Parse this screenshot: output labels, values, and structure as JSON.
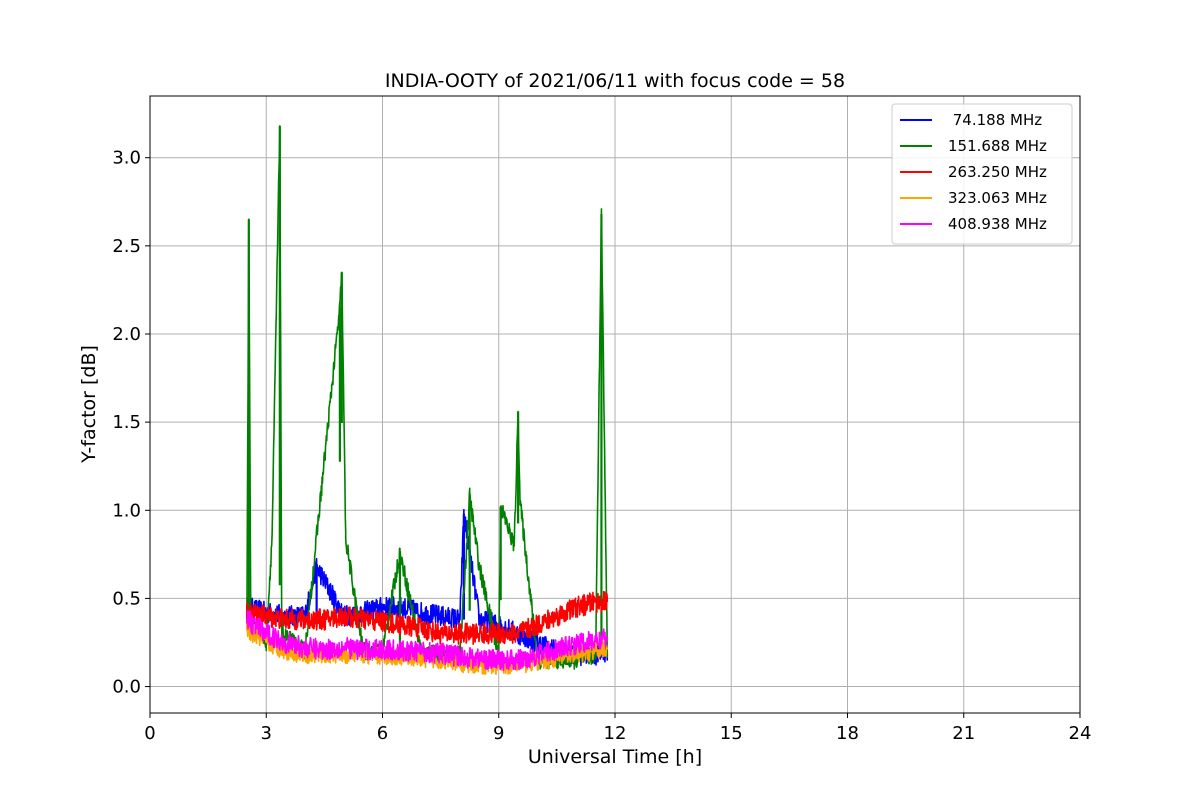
{
  "chart_data": {
    "type": "line",
    "title": "INDIA-OOTY of 2021/06/11 with focus code = 58",
    "xlabel": "Universal Time [h]",
    "ylabel": "Y-factor [dB]",
    "xlim": [
      0,
      24
    ],
    "ylim": [
      -0.15,
      3.35
    ],
    "xticks": [
      0,
      3,
      6,
      9,
      12,
      15,
      18,
      21,
      24
    ],
    "xtick_labels": [
      "0",
      "3",
      "6",
      "9",
      "12",
      "15",
      "18",
      "21",
      "24"
    ],
    "yticks": [
      0.0,
      0.5,
      1.0,
      1.5,
      2.0,
      2.5,
      3.0
    ],
    "ytick_labels": [
      "0.0",
      "0.5",
      "1.0",
      "1.5",
      "2.0",
      "2.5",
      "3.0"
    ],
    "grid": true,
    "legend_position": "top-right",
    "series": [
      {
        "name": " 74.188 MHz",
        "color": "#0000ff",
        "x": [
          2.5,
          3.0,
          3.5,
          4.0,
          4.3,
          5.0,
          5.5,
          6.0,
          6.5,
          7.0,
          7.5,
          8.0,
          8.1,
          8.5,
          9.0,
          9.5,
          10.0,
          10.5,
          11.0,
          11.5,
          11.8
        ],
        "y": [
          0.45,
          0.42,
          0.4,
          0.4,
          0.68,
          0.4,
          0.42,
          0.45,
          0.45,
          0.42,
          0.4,
          0.38,
          0.98,
          0.38,
          0.35,
          0.3,
          0.25,
          0.2,
          0.18,
          0.18,
          0.2
        ],
        "band": 0.12
      },
      {
        "name": "151.688 MHz",
        "color": "#008000",
        "x": [
          2.5,
          2.55,
          2.6,
          3.0,
          3.15,
          3.35,
          3.4,
          4.0,
          4.9,
          4.95,
          5.05,
          5.5,
          6.0,
          6.45,
          7.0,
          7.5,
          8.0,
          8.25,
          8.5,
          9.0,
          9.05,
          9.4,
          9.5,
          9.55,
          10.0,
          10.5,
          11.0,
          11.5,
          11.65,
          11.8
        ],
        "y": [
          0.35,
          2.65,
          0.4,
          0.25,
          0.85,
          3.18,
          0.3,
          0.2,
          2.15,
          2.35,
          0.84,
          0.2,
          0.2,
          0.76,
          0.2,
          0.18,
          0.18,
          1.08,
          0.68,
          0.18,
          1.02,
          0.8,
          1.56,
          1.05,
          0.15,
          0.15,
          0.15,
          0.18,
          2.68,
          0.2
        ],
        "band": 0.1
      },
      {
        "name": "263.250 MHz",
        "color": "#ff0000",
        "x": [
          2.5,
          3.0,
          3.5,
          4.0,
          4.5,
          5.0,
          5.5,
          6.0,
          6.5,
          7.0,
          7.5,
          8.0,
          8.5,
          9.0,
          9.5,
          10.0,
          10.5,
          11.0,
          11.5,
          11.8
        ],
        "y": [
          0.42,
          0.4,
          0.38,
          0.38,
          0.38,
          0.4,
          0.38,
          0.37,
          0.35,
          0.33,
          0.3,
          0.3,
          0.3,
          0.3,
          0.3,
          0.35,
          0.4,
          0.45,
          0.48,
          0.48
        ],
        "band": 0.12
      },
      {
        "name": "323.063 MHz",
        "color": "#ffa500",
        "x": [
          2.5,
          3.0,
          3.5,
          4.0,
          4.5,
          5.0,
          5.5,
          6.0,
          6.5,
          7.0,
          7.5,
          8.0,
          8.5,
          9.0,
          9.5,
          10.0,
          10.5,
          11.0,
          11.5,
          11.8
        ],
        "y": [
          0.32,
          0.25,
          0.2,
          0.18,
          0.18,
          0.18,
          0.18,
          0.17,
          0.17,
          0.16,
          0.15,
          0.13,
          0.12,
          0.12,
          0.12,
          0.14,
          0.16,
          0.18,
          0.2,
          0.22
        ],
        "band": 0.1
      },
      {
        "name": "408.938 MHz",
        "color": "#ff00ff",
        "x": [
          2.5,
          3.0,
          3.5,
          4.0,
          4.5,
          5.0,
          5.5,
          6.0,
          6.5,
          7.0,
          7.5,
          8.0,
          8.5,
          9.0,
          9.5,
          10.0,
          10.5,
          11.0,
          11.5,
          11.8
        ],
        "y": [
          0.38,
          0.3,
          0.25,
          0.22,
          0.21,
          0.22,
          0.21,
          0.21,
          0.2,
          0.2,
          0.19,
          0.17,
          0.16,
          0.15,
          0.15,
          0.18,
          0.21,
          0.24,
          0.26,
          0.27
        ],
        "band": 0.12
      }
    ]
  }
}
